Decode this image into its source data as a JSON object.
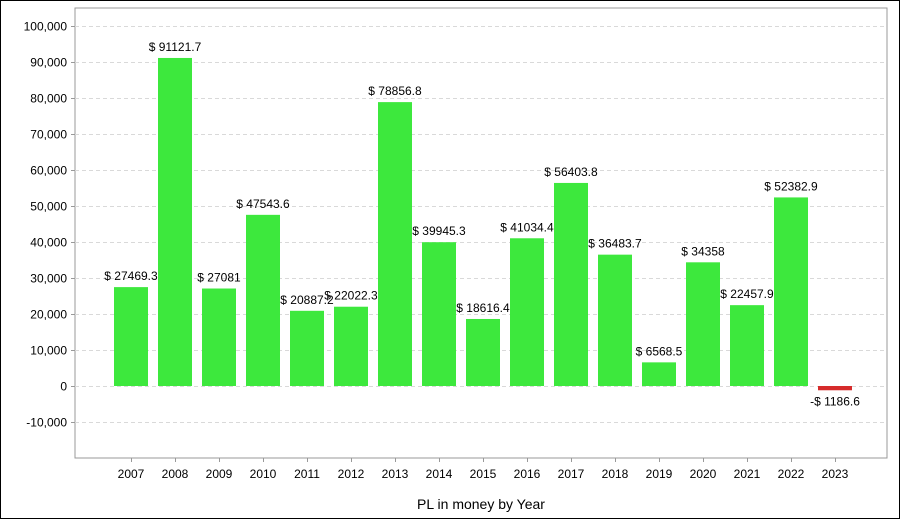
{
  "chart_data": {
    "type": "bar",
    "xlabel": "PL in money by Year",
    "ylabel": "",
    "ylim": [
      -20000,
      105000
    ],
    "yticks": [
      -10000,
      0,
      10000,
      20000,
      30000,
      40000,
      50000,
      60000,
      70000,
      80000,
      90000,
      100000
    ],
    "ytick_labels": [
      "-10,000",
      "0",
      "10,000",
      "20,000",
      "30,000",
      "40,000",
      "50,000",
      "60,000",
      "70,000",
      "80,000",
      "90,000",
      "100,000"
    ],
    "grid": true,
    "categories": [
      "2007",
      "2008",
      "2009",
      "2010",
      "2011",
      "2012",
      "2013",
      "2014",
      "2015",
      "2016",
      "2017",
      "2018",
      "2019",
      "2020",
      "2021",
      "2022",
      "2023"
    ],
    "values": [
      27469.3,
      91121.7,
      27081,
      47543.6,
      20887.2,
      22022.3,
      78856.8,
      39945.3,
      18616.4,
      41034.4,
      56403.8,
      36483.7,
      6568.5,
      34358,
      22457.9,
      52382.9,
      -1186.6
    ],
    "data_labels": [
      "$ 27469.3",
      "$ 91121.7",
      "$ 27081",
      "$ 47543.6",
      "$ 20887.2",
      "$ 22022.3",
      "$ 78856.8",
      "$ 39945.3",
      "$ 18616.4",
      "$ 41034.4",
      "$ 56403.8",
      "$ 36483.7",
      "$ 6568.5",
      "$ 34358",
      "$ 22457.9",
      "$ 52382.9",
      "-$ 1186.6"
    ],
    "colors": {
      "positive": "#3de83d",
      "negative": "#d62b2b",
      "grid": "#d9d9d9",
      "axis": "#999999",
      "plot_bg": "#ffffff"
    }
  }
}
